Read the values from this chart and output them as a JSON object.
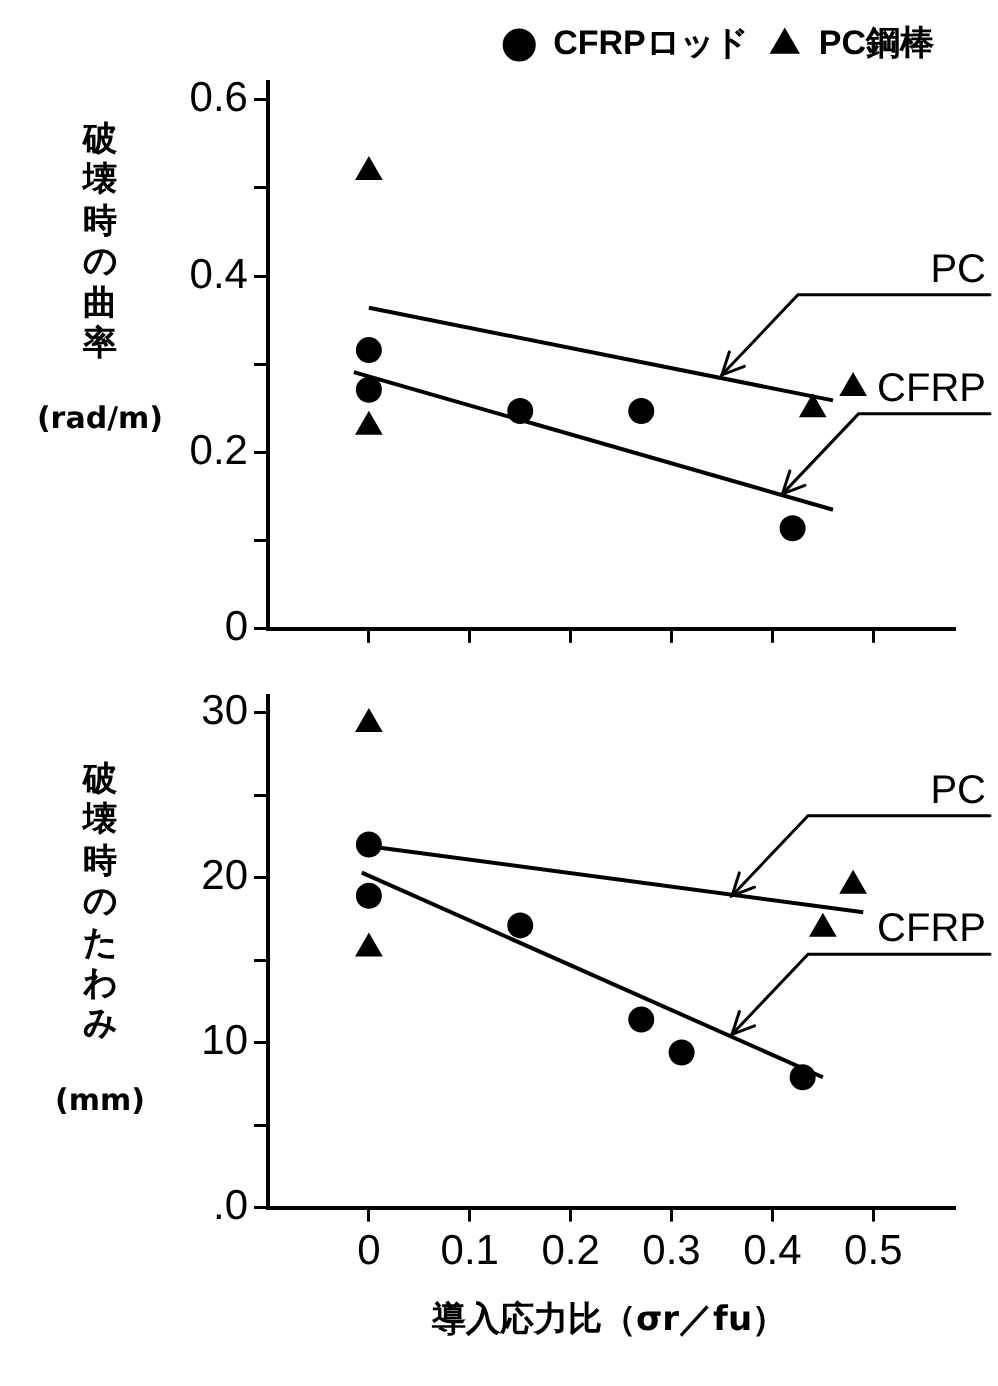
{
  "chart_data": [
    {
      "type": "scatter",
      "ylabel": "破壊時の曲率\n(rad/m)",
      "xlim": [
        -0.1,
        0.58
      ],
      "xticks": [
        0,
        0.1,
        0.2,
        0.3,
        0.4,
        0.5
      ],
      "ylim": [
        0,
        0.62
      ],
      "yticks": [
        0,
        {
          "value": 0.1,
          "label": null
        },
        0.2,
        {
          "value": 0.3,
          "label": null
        },
        0.4,
        {
          "value": 0.5,
          "label": null
        },
        0.6
      ],
      "tick_labels": "y",
      "legend": "top right",
      "series": [
        {
          "name": "CFRPロッド",
          "type": "scatter",
          "marker": "circle",
          "color": "#000000",
          "x": [
            0,
            0,
            0.15,
            0.27,
            0.42
          ],
          "values": [
            0.316,
            0.271,
            0.247,
            0.247,
            0.114
          ]
        },
        {
          "name": "PC鋼棒",
          "type": "scatter",
          "marker": "triangle",
          "color": "#000000",
          "x": [
            0,
            0,
            0.44,
            0.48
          ],
          "values": [
            0.518,
            0.229,
            0.249,
            0.273
          ]
        },
        {
          "type": "line",
          "color": "#000000",
          "x": [
            0,
            0.46
          ],
          "values": [
            0.364,
            0.259
          ]
        },
        {
          "type": "line",
          "color": "#000000",
          "x": [
            -0.015,
            0.46
          ],
          "values": [
            0.291,
            0.135
          ]
        }
      ],
      "annotations": [
        {
          "text": "PC",
          "x": 0.35,
          "y": 0.288
        },
        {
          "text": "CFRP",
          "x": 0.41,
          "y": 0.153
        }
      ]
    },
    {
      "type": "scatter",
      "ylabel": "破壊時のたわみ\n(mm)",
      "xlabel": "導入応力比（σr／fu）",
      "xlim": [
        -0.1,
        0.58
      ],
      "xticks": [
        0,
        0.1,
        0.2,
        0.3,
        0.4,
        0.5
      ],
      "ylim": [
        0,
        31
      ],
      "yticks": [
        {
          "value": 0,
          "label": ".0"
        },
        {
          "value": 5,
          "label": null
        },
        10,
        {
          "value": 15,
          "label": null
        },
        20,
        {
          "value": 25,
          "label": null
        },
        30
      ],
      "series": [
        {
          "type": "scatter",
          "marker": "circle",
          "color": "#000000",
          "x": [
            0,
            0,
            0.15,
            0.27,
            0.31,
            0.43
          ],
          "values": [
            22.0,
            18.9,
            17.1,
            11.4,
            9.4,
            7.9
          ]
        },
        {
          "type": "scatter",
          "marker": "triangle",
          "color": "#000000",
          "x": [
            0,
            0,
            0.45,
            0.48
          ],
          "values": [
            29.3,
            15.7,
            16.9,
            19.5
          ]
        },
        {
          "type": "line",
          "color": "#000000",
          "x": [
            0,
            0.49
          ],
          "values": [
            21.9,
            17.9
          ]
        },
        {
          "type": "line",
          "color": "#000000",
          "x": [
            -0.007,
            0.45
          ],
          "values": [
            20.3,
            7.9
          ]
        }
      ],
      "annotations": [
        {
          "text": "PC",
          "x": 0.36,
          "y": 18.9
        },
        {
          "text": "CFRP",
          "x": 0.36,
          "y": 10.5
        }
      ]
    }
  ]
}
